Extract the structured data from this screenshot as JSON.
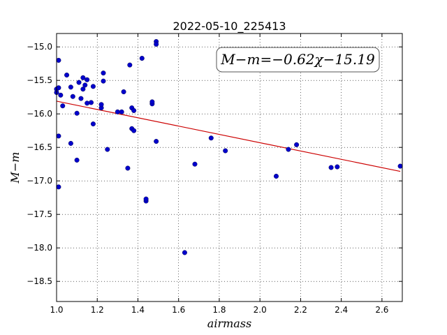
{
  "chart_data": {
    "type": "scatter",
    "title": "2022-05-10_225413",
    "xlabel": "airmass",
    "ylabel": "M−m",
    "xlim": [
      1.0,
      2.7
    ],
    "ylim": [
      -18.8,
      -14.8
    ],
    "y_inverted": true,
    "xticks": [
      "1.0",
      "1.2",
      "1.4",
      "1.6",
      "1.8",
      "2.0",
      "2.2",
      "2.4",
      "2.6"
    ],
    "yticks": [
      "−15.0",
      "−15.5",
      "−16.0",
      "−16.5",
      "−17.0",
      "−17.5",
      "−18.0",
      "−18.5"
    ],
    "grid": true,
    "colors": {
      "points": "#0000cc",
      "fit_line": "#cc0000"
    },
    "annotation": "M−m=−0.62χ−15.19",
    "fit": {
      "slope": -0.62,
      "intercept": -15.19,
      "x_range": [
        1.0,
        2.69
      ]
    },
    "points": [
      [
        1.0,
        -15.68
      ],
      [
        1.0,
        -15.63
      ],
      [
        1.01,
        -15.61
      ],
      [
        1.01,
        -15.2
      ],
      [
        1.01,
        -16.33
      ],
      [
        1.01,
        -17.09
      ],
      [
        1.02,
        -15.72
      ],
      [
        1.03,
        -15.88
      ],
      [
        1.05,
        -15.42
      ],
      [
        1.07,
        -16.44
      ],
      [
        1.07,
        -15.6
      ],
      [
        1.08,
        -15.74
      ],
      [
        1.1,
        -15.99
      ],
      [
        1.1,
        -16.69
      ],
      [
        1.11,
        -15.53
      ],
      [
        1.12,
        -15.77
      ],
      [
        1.13,
        -15.46
      ],
      [
        1.13,
        -15.63
      ],
      [
        1.14,
        -15.57
      ],
      [
        1.15,
        -15.84
      ],
      [
        1.15,
        -15.49
      ],
      [
        1.17,
        -15.83
      ],
      [
        1.18,
        -16.15
      ],
      [
        1.18,
        -15.59
      ],
      [
        1.22,
        -15.91
      ],
      [
        1.22,
        -15.86
      ],
      [
        1.23,
        -15.39
      ],
      [
        1.23,
        -15.51
      ],
      [
        1.25,
        -16.53
      ],
      [
        1.3,
        -15.97
      ],
      [
        1.32,
        -15.97
      ],
      [
        1.33,
        -15.67
      ],
      [
        1.35,
        -16.81
      ],
      [
        1.36,
        -15.27
      ],
      [
        1.37,
        -16.22
      ],
      [
        1.37,
        -15.91
      ],
      [
        1.38,
        -16.25
      ],
      [
        1.38,
        -15.95
      ],
      [
        1.42,
        -15.17
      ],
      [
        1.44,
        -17.3
      ],
      [
        1.44,
        -17.27
      ],
      [
        1.47,
        -15.85
      ],
      [
        1.47,
        -15.82
      ],
      [
        1.49,
        -14.92
      ],
      [
        1.49,
        -14.96
      ],
      [
        1.49,
        -16.41
      ],
      [
        1.63,
        -18.07
      ],
      [
        1.68,
        -16.75
      ],
      [
        1.76,
        -16.36
      ],
      [
        1.83,
        -16.55
      ],
      [
        2.08,
        -16.93
      ],
      [
        2.14,
        -16.53
      ],
      [
        2.18,
        -16.46
      ],
      [
        2.35,
        -16.8
      ],
      [
        2.38,
        -16.79
      ],
      [
        2.69,
        -16.78
      ]
    ]
  }
}
